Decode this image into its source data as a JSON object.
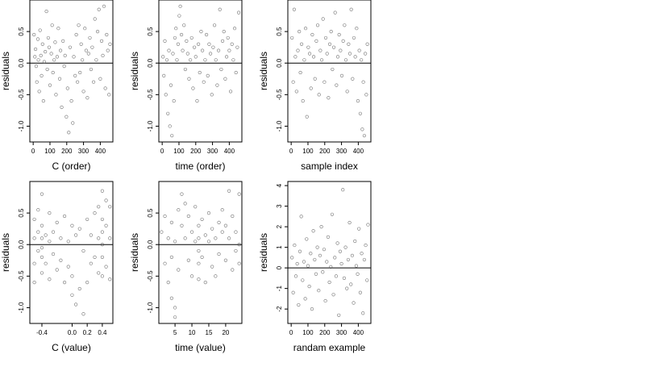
{
  "chart_data": [
    {
      "type": "scatter",
      "xlabel": "C (order)",
      "ylabel": "residuals",
      "xlim": [
        -20,
        475
      ],
      "ylim": [
        -1.25,
        1.0
      ],
      "xticks": [
        0,
        100,
        200,
        300,
        400
      ],
      "xtick_labels": [
        "0",
        "100",
        "200",
        "300",
        "400"
      ],
      "yticks": [
        -1.0,
        -0.5,
        0.0,
        0.5
      ],
      "ytick_labels": [
        "-1.0",
        "-0.5",
        "0.0",
        "0.5"
      ],
      "reference_line_y": 0,
      "series": [
        {
          "x": [
            5,
            10,
            14,
            18,
            22,
            28,
            31,
            36,
            41,
            46,
            50,
            56,
            61,
            66,
            72,
            79,
            84,
            90,
            95,
            100,
            108,
            113,
            118,
            125,
            131,
            136,
            143,
            150,
            158,
            163,
            170,
            178,
            185,
            190,
            198,
            205,
            212,
            220,
            228,
            236,
            242,
            250,
            257,
            264,
            271,
            279,
            286,
            293,
            300,
            308,
            316,
            323,
            330,
            338,
            345,
            352,
            360,
            368,
            376,
            384,
            392,
            400,
            408,
            415,
            422,
            430,
            438,
            445,
            452,
            458
          ],
          "y": [
            0.45,
            0.1,
            0.22,
            -0.05,
            -0.3,
            0.38,
            0.05,
            -0.45,
            0.52,
            0.12,
            -0.2,
            0.3,
            -0.6,
            0.02,
            0.18,
            0.82,
            -0.1,
            0.4,
            0.25,
            -0.35,
            0.15,
            0.6,
            -0.15,
            0.05,
            0.33,
            -0.5,
            0.1,
            0.55,
            -0.25,
            0.2,
            -0.7,
            0.35,
            -0.05,
            0.12,
            -0.85,
            -0.4,
            -1.1,
            0.25,
            -0.6,
            -0.95,
            0.1,
            -0.2,
            0.45,
            -0.3,
            0.6,
            -0.15,
            0.3,
            0.05,
            -0.45,
            0.55,
            0.2,
            -0.55,
            0.15,
            0.4,
            -0.1,
            0.25,
            -0.3,
            0.7,
            0.05,
            0.5,
            0.85,
            -0.25,
            0.35,
            0.12,
            0.9,
            -0.4,
            0.45,
            0.2,
            -0.5,
            0.3
          ]
        }
      ]
    },
    {
      "type": "scatter",
      "xlabel": "time (order)",
      "ylabel": "residuals",
      "xlim": [
        -20,
        475
      ],
      "ylim": [
        -1.25,
        1.0
      ],
      "xticks": [
        0,
        100,
        200,
        300,
        400
      ],
      "xtick_labels": [
        "0",
        "100",
        "200",
        "300",
        "400"
      ],
      "yticks": [
        -1.0,
        -0.5,
        0.0,
        0.5
      ],
      "ytick_labels": [
        "-1.0",
        "-0.5",
        "0.0",
        "0.5"
      ],
      "reference_line_y": 0,
      "series": [
        {
          "x": [
            5,
            10,
            16,
            22,
            28,
            34,
            40,
            46,
            52,
            58,
            64,
            70,
            76,
            82,
            88,
            95,
            102,
            108,
            115,
            122,
            130,
            138,
            145,
            152,
            160,
            168,
            176,
            184,
            192,
            200,
            208,
            216,
            224,
            232,
            240,
            248,
            256,
            264,
            272,
            280,
            288,
            296,
            304,
            312,
            320,
            328,
            336,
            344,
            352,
            360,
            368,
            376,
            384,
            392,
            400,
            408,
            416,
            424,
            432,
            440,
            448,
            456
          ],
          "y": [
            0.1,
            -0.2,
            0.35,
            -0.5,
            0.05,
            -0.8,
            0.2,
            -1.0,
            -0.35,
            -1.15,
            0.15,
            -0.6,
            0.4,
            0.55,
            0.05,
            0.3,
            0.75,
            0.9,
            0.45,
            0.2,
            0.6,
            -0.1,
            0.35,
            0.15,
            -0.25,
            0.05,
            0.4,
            -0.4,
            0.25,
            0.1,
            -0.6,
            0.3,
            -0.15,
            0.5,
            0.2,
            -0.3,
            0.05,
            0.45,
            -0.2,
            0.3,
            0.15,
            -0.5,
            0.25,
            0.6,
            0.05,
            -0.35,
            0.2,
            0.85,
            -0.1,
            0.35,
            0.5,
            -0.25,
            0.1,
            0.4,
            0.2,
            -0.45,
            0.3,
            0.05,
            0.55,
            -0.15,
            0.25,
            0.8
          ]
        }
      ]
    },
    {
      "type": "scatter",
      "xlabel": "sample index",
      "ylabel": "residuals",
      "xlim": [
        -20,
        475
      ],
      "ylim": [
        -1.25,
        1.0
      ],
      "xticks": [
        0,
        100,
        200,
        300,
        400
      ],
      "xtick_labels": [
        "0",
        "100",
        "200",
        "300",
        "400"
      ],
      "yticks": [
        -1.0,
        -0.5,
        0.0,
        0.5
      ],
      "ytick_labels": [
        "-1.0",
        "-0.5",
        "0.0",
        "0.5"
      ],
      "reference_line_y": 0,
      "series": [
        {
          "x": [
            5,
            12,
            18,
            25,
            32,
            40,
            48,
            55,
            62,
            70,
            78,
            86,
            94,
            102,
            110,
            118,
            126,
            134,
            142,
            150,
            158,
            166,
            174,
            182,
            190,
            198,
            206,
            214,
            222,
            230,
            238,
            246,
            254,
            262,
            270,
            278,
            286,
            294,
            302,
            310,
            318,
            326,
            334,
            342,
            350,
            358,
            366,
            374,
            382,
            390,
            398,
            406,
            412,
            418,
            424,
            430,
            436,
            442,
            448,
            454
          ],
          "y": [
            0.4,
            -0.3,
            0.85,
            0.1,
            -0.45,
            0.2,
            0.5,
            -0.15,
            0.3,
            -0.6,
            0.05,
            0.55,
            -0.85,
            0.25,
            0.15,
            -0.4,
            0.45,
            0.1,
            -0.25,
            0.35,
            0.6,
            -0.5,
            0.2,
            0.05,
            0.7,
            -0.3,
            0.4,
            0.15,
            -0.55,
            0.3,
            0.5,
            -0.1,
            0.25,
            0.8,
            -0.35,
            0.1,
            0.45,
            0.2,
            -0.2,
            0.35,
            0.6,
            0.05,
            -0.45,
            0.3,
            0.15,
            0.85,
            -0.25,
            0.4,
            0.1,
            0.55,
            -0.6,
            0.2,
            -0.8,
            0.05,
            -1.05,
            -0.3,
            -1.15,
            0.15,
            -0.5,
            0.3
          ]
        }
      ]
    },
    {
      "type": "scatter",
      "xlabel": "C (value)",
      "ylabel": "residuals",
      "xlim": [
        -0.56,
        0.54
      ],
      "ylim": [
        -1.25,
        1.0
      ],
      "xticks": [
        -0.4,
        0.0,
        0.2,
        0.4
      ],
      "xtick_labels": [
        "-0.4",
        "0.0",
        "0.2",
        "0.4"
      ],
      "yticks": [
        -1.0,
        -0.5,
        0.0,
        0.5
      ],
      "ytick_labels": [
        "-1.0",
        "-0.5",
        "0.0",
        "0.5"
      ],
      "reference_line_y": 0,
      "series": [
        {
          "x": [
            -0.5,
            -0.5,
            -0.5,
            -0.5,
            -0.45,
            -0.45,
            -0.45,
            -0.4,
            -0.4,
            -0.4,
            -0.4,
            -0.4,
            -0.4,
            -0.35,
            -0.35,
            -0.3,
            -0.3,
            -0.3,
            -0.25,
            -0.25,
            -0.2,
            -0.2,
            -0.15,
            -0.15,
            -0.1,
            -0.1,
            -0.05,
            -0.05,
            0.0,
            0.0,
            0.0,
            0.05,
            0.05,
            0.1,
            0.1,
            0.15,
            0.15,
            0.2,
            0.2,
            0.25,
            0.25,
            0.3,
            0.3,
            0.35,
            0.35,
            0.35,
            0.4,
            0.4,
            0.4,
            0.4,
            0.4,
            0.4,
            0.45,
            0.45,
            0.45,
            0.5,
            0.5,
            0.5
          ],
          "y": [
            0.4,
            0.1,
            -0.3,
            -0.6,
            0.2,
            -0.1,
            0.55,
            0.8,
            0.3,
            0.1,
            -0.05,
            -0.2,
            -0.45,
            0.15,
            -0.3,
            0.5,
            0.05,
            -0.55,
            0.2,
            -0.15,
            0.35,
            -0.4,
            0.1,
            -0.25,
            0.45,
            -0.6,
            0.05,
            -0.35,
            0.3,
            -0.5,
            -0.8,
            0.15,
            -0.95,
            0.25,
            -0.7,
            -0.1,
            -1.1,
            0.4,
            -0.6,
            0.15,
            -0.3,
            0.5,
            -0.2,
            0.6,
            0.1,
            -0.45,
            0.85,
            0.4,
            0.2,
            0.0,
            -0.2,
            -0.5,
            0.7,
            0.3,
            -0.35,
            0.6,
            0.1,
            -0.55
          ]
        }
      ]
    },
    {
      "type": "scatter",
      "xlabel": "time (value)",
      "ylabel": "residuals",
      "xlim": [
        0.2,
        24.8
      ],
      "ylim": [
        -1.25,
        1.0
      ],
      "xticks": [
        5,
        10,
        15,
        20
      ],
      "xtick_labels": [
        "5",
        "10",
        "15",
        "20"
      ],
      "yticks": [
        -1.0,
        -0.5,
        0.0,
        0.5
      ],
      "ytick_labels": [
        "-1.0",
        "-0.5",
        "0.0",
        "0.5"
      ],
      "reference_line_y": 0,
      "series": [
        {
          "x": [
            1,
            2,
            2,
            3,
            3,
            4,
            4,
            4,
            5,
            5,
            5,
            6,
            6,
            7,
            7,
            8,
            8,
            9,
            9,
            10,
            10,
            11,
            11,
            12,
            12,
            12,
            12,
            12,
            13,
            13,
            14,
            14,
            15,
            15,
            16,
            16,
            17,
            17,
            18,
            18,
            19,
            19,
            20,
            20,
            21,
            21,
            22,
            22,
            23,
            23,
            24,
            24,
            24
          ],
          "y": [
            0.2,
            -0.3,
            0.45,
            0.1,
            -0.6,
            -0.2,
            -0.85,
            0.35,
            -1.0,
            -1.15,
            0.05,
            0.55,
            -0.4,
            0.8,
            0.3,
            0.65,
            0.1,
            0.45,
            -0.25,
            0.2,
            -0.5,
            0.6,
            0.05,
            0.3,
            0.1,
            -0.1,
            -0.3,
            -0.55,
            0.4,
            -0.2,
            0.15,
            -0.6,
            0.5,
            0.05,
            -0.35,
            0.25,
            0.1,
            -0.5,
            0.35,
            -0.15,
            0.55,
            0.2,
            -0.25,
            0.3,
            0.85,
            0.1,
            -0.4,
            0.45,
            0.2,
            -0.1,
            0.8,
            0.0,
            -0.3
          ]
        }
      ]
    },
    {
      "type": "scatter",
      "xlabel": "randam example",
      "ylabel": "residuals",
      "xlim": [
        -20,
        475
      ],
      "ylim": [
        -2.7,
        4.2
      ],
      "xticks": [
        0,
        100,
        200,
        300,
        400
      ],
      "xtick_labels": [
        "0",
        "100",
        "200",
        "300",
        "400"
      ],
      "yticks": [
        -2,
        -1,
        0,
        1,
        2,
        3,
        4
      ],
      "ytick_labels": [
        "-2",
        "-1",
        "0",
        "1",
        "2",
        "3",
        "4"
      ],
      "reference_line_y": 0,
      "series": [
        {
          "x": [
            5,
            12,
            20,
            28,
            36,
            44,
            52,
            60,
            68,
            76,
            84,
            92,
            100,
            108,
            116,
            124,
            132,
            140,
            148,
            156,
            164,
            172,
            180,
            188,
            196,
            204,
            212,
            220,
            228,
            236,
            244,
            252,
            260,
            268,
            276,
            284,
            292,
            300,
            308,
            316,
            324,
            332,
            340,
            348,
            356,
            364,
            372,
            380,
            388,
            396,
            404,
            412,
            420,
            428,
            436,
            444,
            452,
            458
          ],
          "y": [
            0.5,
            -1.2,
            1.1,
            -0.4,
            0.2,
            -1.8,
            0.8,
            2.5,
            -0.6,
            0.3,
            -1.5,
            1.4,
            0.1,
            -0.9,
            0.7,
            -2.0,
            1.8,
            0.4,
            -0.3,
            1.0,
            -1.1,
            0.6,
            2.0,
            -0.2,
            0.9,
            -1.6,
            0.3,
            1.5,
            -0.7,
            0.05,
            2.6,
            -1.3,
            0.5,
            -0.4,
            1.2,
            -2.3,
            0.8,
            0.2,
            3.8,
            -0.5,
            1.0,
            -1.0,
            0.4,
            2.2,
            -0.8,
            0.6,
            -1.7,
            1.3,
            0.1,
            -0.3,
            1.9,
            -1.2,
            0.7,
            -2.2,
            0.4,
            1.1,
            -0.6,
            2.1
          ]
        }
      ]
    }
  ]
}
